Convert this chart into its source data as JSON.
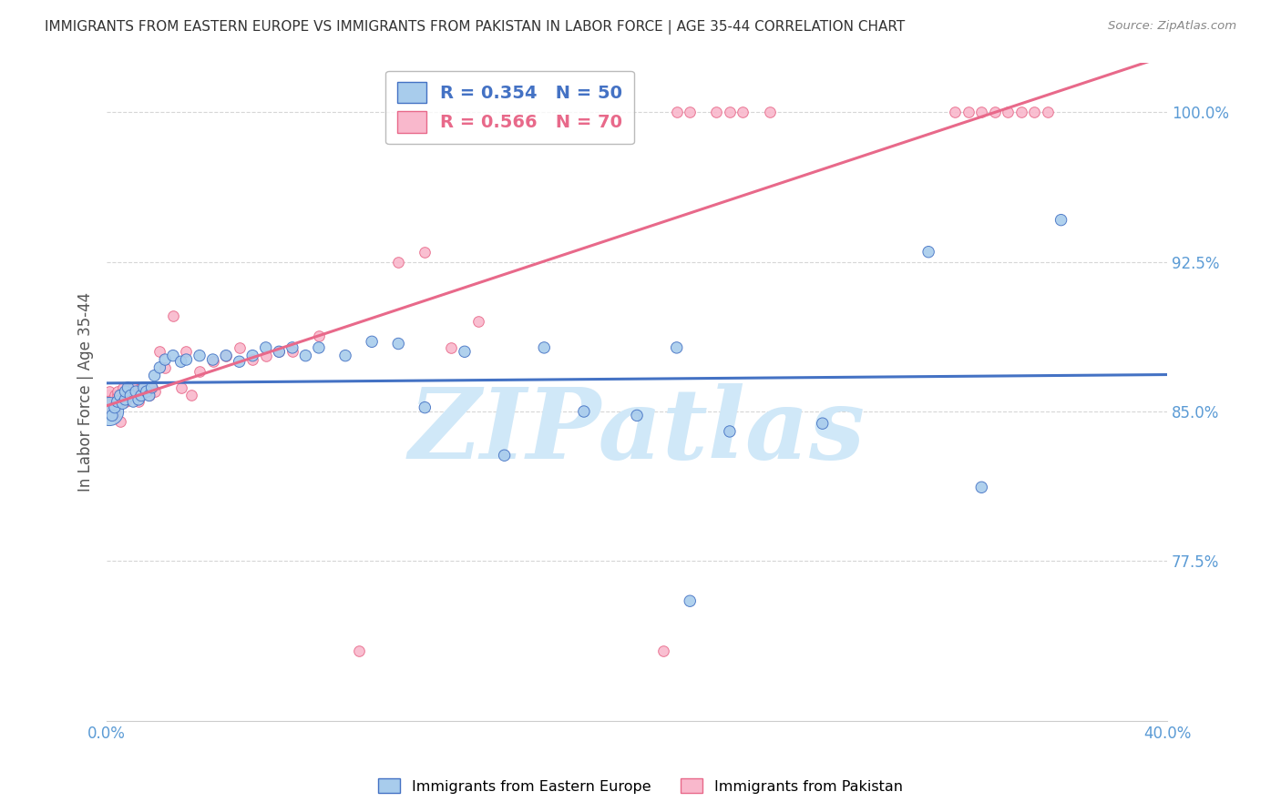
{
  "title": "IMMIGRANTS FROM EASTERN EUROPE VS IMMIGRANTS FROM PAKISTAN IN LABOR FORCE | AGE 35-44 CORRELATION CHART",
  "source": "Source: ZipAtlas.com",
  "ylabel": "In Labor Force | Age 35-44",
  "ytick_labels": [
    "100.0%",
    "92.5%",
    "85.0%",
    "77.5%"
  ],
  "ytick_values": [
    1.0,
    0.925,
    0.85,
    0.775
  ],
  "xlim": [
    0.0,
    0.4
  ],
  "ylim": [
    0.695,
    1.025
  ],
  "blue_label": "Immigrants from Eastern Europe",
  "pink_label": "Immigrants from Pakistan",
  "blue_R": "0.354",
  "blue_N": "50",
  "pink_R": "0.566",
  "pink_N": "70",
  "blue_color": "#a8ccec",
  "pink_color": "#f9b8cc",
  "blue_line_color": "#4472c4",
  "pink_line_color": "#e8698a",
  "watermark": "ZIPatlas",
  "watermark_color": "#d0e8f8",
  "title_color": "#333333",
  "axis_label_color": "#5b9bd5",
  "grid_color": "#cccccc",
  "blue_x": [
    0.001,
    0.002,
    0.003,
    0.004,
    0.005,
    0.006,
    0.007,
    0.007,
    0.008,
    0.009,
    0.01,
    0.011,
    0.012,
    0.013,
    0.014,
    0.015,
    0.016,
    0.017,
    0.018,
    0.02,
    0.022,
    0.025,
    0.028,
    0.03,
    0.035,
    0.04,
    0.045,
    0.05,
    0.055,
    0.06,
    0.065,
    0.07,
    0.075,
    0.08,
    0.09,
    0.1,
    0.11,
    0.12,
    0.135,
    0.15,
    0.165,
    0.18,
    0.2,
    0.215,
    0.22,
    0.235,
    0.27,
    0.31,
    0.33,
    0.36
  ],
  "blue_y": [
    0.85,
    0.848,
    0.852,
    0.855,
    0.858,
    0.854,
    0.856,
    0.86,
    0.862,
    0.858,
    0.855,
    0.86,
    0.856,
    0.858,
    0.862,
    0.86,
    0.858,
    0.862,
    0.868,
    0.872,
    0.876,
    0.878,
    0.875,
    0.876,
    0.878,
    0.876,
    0.878,
    0.875,
    0.878,
    0.882,
    0.88,
    0.882,
    0.878,
    0.882,
    0.878,
    0.885,
    0.884,
    0.852,
    0.88,
    0.828,
    0.882,
    0.85,
    0.848,
    0.882,
    0.755,
    0.84,
    0.844,
    0.93,
    0.812,
    0.946
  ],
  "blue_sizes": [
    500,
    80,
    80,
    80,
    80,
    80,
    80,
    80,
    80,
    80,
    80,
    80,
    80,
    80,
    80,
    80,
    80,
    80,
    80,
    80,
    80,
    80,
    80,
    80,
    80,
    80,
    80,
    80,
    80,
    80,
    80,
    80,
    80,
    80,
    80,
    80,
    80,
    80,
    80,
    80,
    80,
    80,
    80,
    80,
    80,
    80,
    80,
    80,
    80,
    80
  ],
  "pink_x": [
    0.001,
    0.001,
    0.001,
    0.002,
    0.002,
    0.002,
    0.002,
    0.003,
    0.003,
    0.003,
    0.003,
    0.004,
    0.004,
    0.004,
    0.005,
    0.005,
    0.005,
    0.006,
    0.006,
    0.007,
    0.007,
    0.008,
    0.008,
    0.009,
    0.009,
    0.01,
    0.01,
    0.011,
    0.012,
    0.013,
    0.014,
    0.015,
    0.016,
    0.017,
    0.018,
    0.02,
    0.022,
    0.025,
    0.028,
    0.03,
    0.032,
    0.035,
    0.04,
    0.045,
    0.05,
    0.055,
    0.06,
    0.065,
    0.07,
    0.08,
    0.095,
    0.11,
    0.12,
    0.13,
    0.14,
    0.21,
    0.215,
    0.22,
    0.23,
    0.235,
    0.24,
    0.25,
    0.32,
    0.325,
    0.33,
    0.335,
    0.34,
    0.345,
    0.35,
    0.355
  ],
  "pink_y": [
    0.858,
    0.86,
    0.852,
    0.856,
    0.85,
    0.855,
    0.848,
    0.856,
    0.858,
    0.854,
    0.85,
    0.856,
    0.858,
    0.86,
    0.854,
    0.858,
    0.845,
    0.862,
    0.858,
    0.86,
    0.855,
    0.858,
    0.862,
    0.858,
    0.86,
    0.862,
    0.86,
    0.858,
    0.855,
    0.862,
    0.86,
    0.86,
    0.858,
    0.862,
    0.86,
    0.88,
    0.872,
    0.898,
    0.862,
    0.88,
    0.858,
    0.87,
    0.875,
    0.878,
    0.882,
    0.876,
    0.878,
    0.88,
    0.88,
    0.888,
    0.73,
    0.925,
    0.93,
    0.882,
    0.895,
    0.73,
    1.0,
    1.0,
    1.0,
    1.0,
    1.0,
    1.0,
    1.0,
    1.0,
    1.0,
    1.0,
    1.0,
    1.0,
    1.0,
    1.0
  ]
}
